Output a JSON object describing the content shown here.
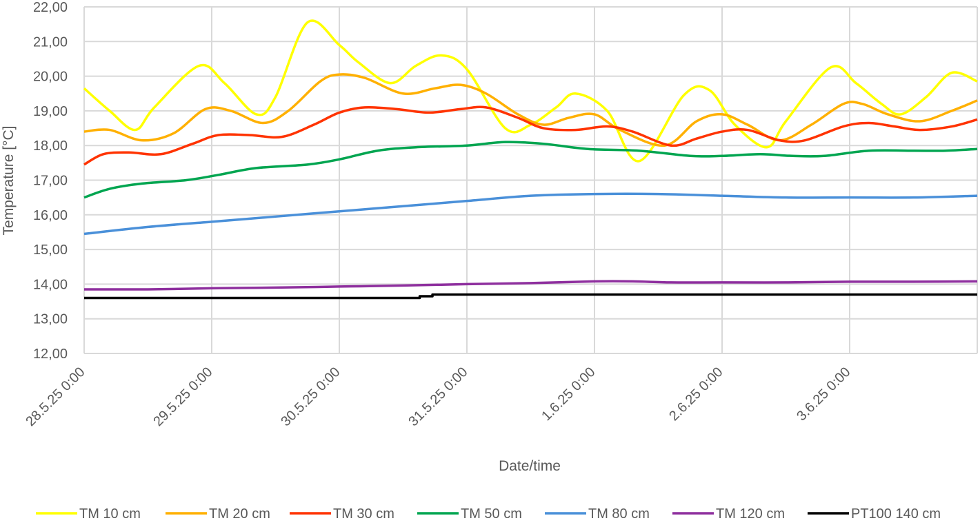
{
  "chart_data": {
    "type": "line",
    "xlabel": "Date/time",
    "ylabel": "Temperature [°C]",
    "ylim": [
      12,
      22
    ],
    "yticks": [
      "12,00",
      "13,00",
      "14,00",
      "15,00",
      "16,00",
      "17,00",
      "18,00",
      "19,00",
      "20,00",
      "21,00",
      "22,00"
    ],
    "xlim": [
      0,
      7
    ],
    "xticks": [
      {
        "x": 0,
        "label": "28.5.25 0:00"
      },
      {
        "x": 1,
        "label": "29.5.25 0:00"
      },
      {
        "x": 2,
        "label": "30.5.25 0:00"
      },
      {
        "x": 3,
        "label": "31.5.25 0:00"
      },
      {
        "x": 4,
        "label": "1.6.25 0:00"
      },
      {
        "x": 5,
        "label": "2.6.25 0:00"
      },
      {
        "x": 6,
        "label": "3.6.25 0:00"
      }
    ],
    "grid": true,
    "legend_position": "bottom",
    "series": [
      {
        "name": "TM 10 cm",
        "color": "#FFFF00",
        "smooth": true,
        "points": [
          [
            0,
            19.65
          ],
          [
            0.2,
            19.0
          ],
          [
            0.4,
            18.45
          ],
          [
            0.55,
            19.1
          ],
          [
            0.9,
            20.3
          ],
          [
            1.1,
            19.8
          ],
          [
            1.35,
            18.9
          ],
          [
            1.5,
            19.4
          ],
          [
            1.75,
            21.55
          ],
          [
            2.0,
            20.9
          ],
          [
            2.15,
            20.4
          ],
          [
            2.4,
            19.8
          ],
          [
            2.6,
            20.3
          ],
          [
            2.8,
            20.6
          ],
          [
            3.0,
            20.2
          ],
          [
            3.3,
            18.5
          ],
          [
            3.5,
            18.6
          ],
          [
            3.7,
            19.1
          ],
          [
            3.85,
            19.5
          ],
          [
            4.1,
            19.0
          ],
          [
            4.35,
            17.55
          ],
          [
            4.7,
            19.45
          ],
          [
            4.9,
            19.6
          ],
          [
            5.1,
            18.6
          ],
          [
            5.35,
            17.95
          ],
          [
            5.5,
            18.7
          ],
          [
            5.85,
            20.25
          ],
          [
            6.05,
            19.8
          ],
          [
            6.25,
            19.2
          ],
          [
            6.4,
            18.9
          ],
          [
            6.6,
            19.4
          ],
          [
            6.8,
            20.1
          ],
          [
            7.0,
            19.85
          ]
        ]
      },
      {
        "name": "TM 20 cm",
        "color": "#FFB000",
        "smooth": true,
        "points": [
          [
            0,
            18.4
          ],
          [
            0.2,
            18.45
          ],
          [
            0.45,
            18.15
          ],
          [
            0.7,
            18.35
          ],
          [
            0.95,
            19.05
          ],
          [
            1.15,
            19.0
          ],
          [
            1.4,
            18.65
          ],
          [
            1.6,
            19.0
          ],
          [
            1.85,
            19.85
          ],
          [
            2.0,
            20.05
          ],
          [
            2.2,
            19.95
          ],
          [
            2.5,
            19.5
          ],
          [
            2.75,
            19.65
          ],
          [
            2.95,
            19.75
          ],
          [
            3.15,
            19.5
          ],
          [
            3.4,
            18.9
          ],
          [
            3.6,
            18.6
          ],
          [
            3.8,
            18.8
          ],
          [
            4.0,
            18.9
          ],
          [
            4.2,
            18.45
          ],
          [
            4.55,
            18.0
          ],
          [
            4.8,
            18.7
          ],
          [
            5.0,
            18.9
          ],
          [
            5.2,
            18.6
          ],
          [
            5.45,
            18.15
          ],
          [
            5.7,
            18.6
          ],
          [
            5.95,
            19.2
          ],
          [
            6.1,
            19.2
          ],
          [
            6.3,
            18.9
          ],
          [
            6.55,
            18.7
          ],
          [
            6.8,
            19.0
          ],
          [
            7.0,
            19.3
          ]
        ]
      },
      {
        "name": "TM 30 cm",
        "color": "#FF3300",
        "smooth": true,
        "points": [
          [
            0,
            17.45
          ],
          [
            0.15,
            17.75
          ],
          [
            0.35,
            17.8
          ],
          [
            0.6,
            17.75
          ],
          [
            0.85,
            18.05
          ],
          [
            1.05,
            18.3
          ],
          [
            1.3,
            18.3
          ],
          [
            1.55,
            18.25
          ],
          [
            1.8,
            18.6
          ],
          [
            2.0,
            18.95
          ],
          [
            2.2,
            19.1
          ],
          [
            2.45,
            19.05
          ],
          [
            2.7,
            18.95
          ],
          [
            2.95,
            19.05
          ],
          [
            3.15,
            19.1
          ],
          [
            3.4,
            18.8
          ],
          [
            3.6,
            18.5
          ],
          [
            3.85,
            18.45
          ],
          [
            4.1,
            18.55
          ],
          [
            4.3,
            18.4
          ],
          [
            4.6,
            18.0
          ],
          [
            4.8,
            18.2
          ],
          [
            5.0,
            18.4
          ],
          [
            5.2,
            18.45
          ],
          [
            5.45,
            18.15
          ],
          [
            5.65,
            18.15
          ],
          [
            5.95,
            18.55
          ],
          [
            6.15,
            18.65
          ],
          [
            6.35,
            18.55
          ],
          [
            6.55,
            18.45
          ],
          [
            6.8,
            18.55
          ],
          [
            7.0,
            18.75
          ]
        ]
      },
      {
        "name": "TM 50 cm",
        "color": "#00A550",
        "smooth": true,
        "points": [
          [
            0,
            16.5
          ],
          [
            0.2,
            16.75
          ],
          [
            0.45,
            16.9
          ],
          [
            0.8,
            17.0
          ],
          [
            1.05,
            17.15
          ],
          [
            1.35,
            17.35
          ],
          [
            1.75,
            17.45
          ],
          [
            2.0,
            17.6
          ],
          [
            2.3,
            17.85
          ],
          [
            2.6,
            17.95
          ],
          [
            3.0,
            18.0
          ],
          [
            3.3,
            18.1
          ],
          [
            3.6,
            18.05
          ],
          [
            3.95,
            17.9
          ],
          [
            4.35,
            17.85
          ],
          [
            4.75,
            17.7
          ],
          [
            5.0,
            17.7
          ],
          [
            5.3,
            17.75
          ],
          [
            5.55,
            17.7
          ],
          [
            5.8,
            17.7
          ],
          [
            6.15,
            17.85
          ],
          [
            6.5,
            17.85
          ],
          [
            6.75,
            17.85
          ],
          [
            7.0,
            17.9
          ]
        ]
      },
      {
        "name": "TM 80 cm",
        "color": "#4A90D9",
        "smooth": true,
        "points": [
          [
            0,
            15.45
          ],
          [
            0.5,
            15.65
          ],
          [
            1.0,
            15.8
          ],
          [
            1.5,
            15.95
          ],
          [
            2.0,
            16.1
          ],
          [
            2.5,
            16.25
          ],
          [
            3.0,
            16.4
          ],
          [
            3.5,
            16.55
          ],
          [
            4.0,
            16.6
          ],
          [
            4.5,
            16.6
          ],
          [
            5.0,
            16.55
          ],
          [
            5.5,
            16.5
          ],
          [
            6.0,
            16.5
          ],
          [
            6.5,
            16.5
          ],
          [
            7.0,
            16.55
          ]
        ]
      },
      {
        "name": "TM 120 cm",
        "color": "#8E2F9E",
        "smooth": true,
        "points": [
          [
            0,
            13.85
          ],
          [
            0.5,
            13.85
          ],
          [
            1.0,
            13.88
          ],
          [
            1.5,
            13.9
          ],
          [
            2.0,
            13.93
          ],
          [
            2.5,
            13.96
          ],
          [
            3.0,
            14.0
          ],
          [
            3.5,
            14.03
          ],
          [
            4.0,
            14.08
          ],
          [
            4.3,
            14.08
          ],
          [
            4.6,
            14.05
          ],
          [
            5.0,
            14.05
          ],
          [
            5.5,
            14.05
          ],
          [
            6.0,
            14.07
          ],
          [
            6.5,
            14.07
          ],
          [
            7.0,
            14.08
          ]
        ]
      },
      {
        "name": "PT100 140 cm",
        "color": "#000000",
        "smooth": false,
        "points": [
          [
            0,
            13.6
          ],
          [
            2.63,
            13.6
          ],
          [
            2.63,
            13.65
          ],
          [
            2.73,
            13.65
          ],
          [
            2.73,
            13.7
          ],
          [
            7.0,
            13.7
          ]
        ]
      }
    ]
  }
}
